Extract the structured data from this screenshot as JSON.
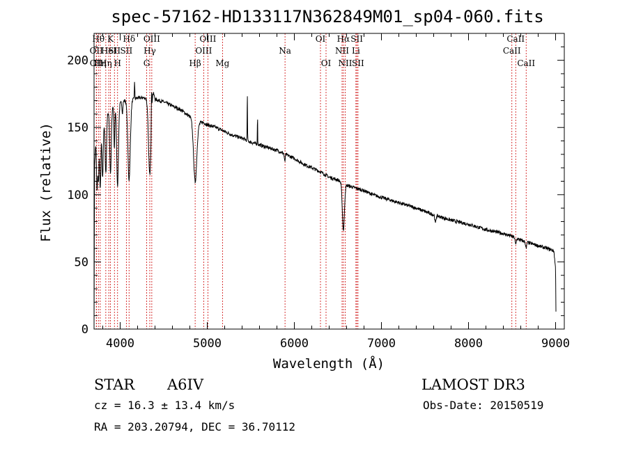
{
  "chart_data": {
    "type": "line",
    "title": "spec-57162-HD133117N362849M01_sp04-060.fits",
    "xlabel": "Wavelength (Å)",
    "ylabel": "Flux (relative)",
    "xlim": [
      3700,
      9100
    ],
    "ylim": [
      0,
      220
    ],
    "xticks": [
      4000,
      5000,
      6000,
      7000,
      8000,
      9000
    ],
    "yticks": [
      0,
      50,
      100,
      150,
      200
    ],
    "continuum": [
      [
        3700,
        0
      ],
      [
        3705,
        120
      ],
      [
        3720,
        140
      ],
      [
        3760,
        148
      ],
      [
        3800,
        152
      ],
      [
        3850,
        160
      ],
      [
        3900,
        165
      ],
      [
        3950,
        166
      ],
      [
        4000,
        168
      ],
      [
        4050,
        170
      ],
      [
        4100,
        171
      ],
      [
        4150,
        171
      ],
      [
        4200,
        172
      ],
      [
        4250,
        172
      ],
      [
        4300,
        172
      ],
      [
        4340,
        173
      ],
      [
        4370,
        180
      ],
      [
        4400,
        171
      ],
      [
        4500,
        169
      ],
      [
        4600,
        166
      ],
      [
        4700,
        163
      ],
      [
        4800,
        158
      ],
      [
        4850,
        155
      ],
      [
        4900,
        153
      ],
      [
        4950,
        154
      ],
      [
        5000,
        152
      ],
      [
        5100,
        150
      ],
      [
        5200,
        147
      ],
      [
        5300,
        144
      ],
      [
        5400,
        142
      ],
      [
        5500,
        139
      ],
      [
        5600,
        137
      ],
      [
        5700,
        135
      ],
      [
        5800,
        133
      ],
      [
        5900,
        130
      ],
      [
        6000,
        127
      ],
      [
        6100,
        123
      ],
      [
        6200,
        120
      ],
      [
        6300,
        117
      ],
      [
        6400,
        113
      ],
      [
        6500,
        111
      ],
      [
        6550,
        109
      ],
      [
        6600,
        107
      ],
      [
        6700,
        105
      ],
      [
        6800,
        103
      ],
      [
        6900,
        100
      ],
      [
        7000,
        98
      ],
      [
        7200,
        94
      ],
      [
        7400,
        90
      ],
      [
        7600,
        85
      ],
      [
        7800,
        81
      ],
      [
        8000,
        78
      ],
      [
        8200,
        74
      ],
      [
        8400,
        71
      ],
      [
        8500,
        69
      ],
      [
        8600,
        66
      ],
      [
        8700,
        64
      ],
      [
        8800,
        62
      ],
      [
        8900,
        60
      ],
      [
        8950,
        59
      ],
      [
        8980,
        58
      ],
      [
        9000,
        45
      ],
      [
        9005,
        5
      ]
    ],
    "features": [
      {
        "center": 3734,
        "depth": 40,
        "width": 6
      },
      {
        "center": 3750,
        "depth": 35,
        "width": 6
      },
      {
        "center": 3771,
        "depth": 45,
        "width": 7
      },
      {
        "center": 3798,
        "depth": 40,
        "width": 7
      },
      {
        "center": 3835,
        "depth": 42,
        "width": 8
      },
      {
        "center": 3889,
        "depth": 48,
        "width": 9
      },
      {
        "center": 3933,
        "depth": 32,
        "width": 5
      },
      {
        "center": 3970,
        "depth": 60,
        "width": 10
      },
      {
        "center": 4026,
        "depth": 8,
        "width": 5
      },
      {
        "center": 4102,
        "depth": 60,
        "width": 14
      },
      {
        "center": 4340,
        "depth": 58,
        "width": 15
      },
      {
        "center": 4861,
        "depth": 45,
        "width": 18
      },
      {
        "center": 5890,
        "depth": 6,
        "width": 5
      },
      {
        "center": 6563,
        "depth": 35,
        "width": 12
      },
      {
        "center": 7620,
        "depth": 6,
        "width": 6
      },
      {
        "center": 8542,
        "depth": 5,
        "width": 6
      },
      {
        "center": 8662,
        "depth": 5,
        "width": 6
      }
    ],
    "emission_spikes": [
      {
        "center": 4165,
        "height": 12,
        "width": 3
      },
      {
        "center": 4360,
        "height": 22,
        "width": 3
      },
      {
        "center": 5460,
        "height": 38,
        "width": 2
      },
      {
        "center": 5577,
        "height": 22,
        "width": 2
      }
    ],
    "line_markers": [
      {
        "x": 3726,
        "label": "OII",
        "row": 1
      },
      {
        "x": 3727,
        "label": "OII",
        "row": 2
      },
      {
        "x": 3750,
        "label": "Hθ",
        "row": 0
      },
      {
        "x": 3771,
        "label": "Hη",
        "row": 2
      },
      {
        "x": 3835,
        "label": "Hη",
        "row": 2
      },
      {
        "x": 3869,
        "label": "HeI",
        "row": 1
      },
      {
        "x": 3889,
        "label": "K",
        "row": 0
      },
      {
        "x": 3934,
        "label": "SII",
        "row": 1
      },
      {
        "x": 3970,
        "label": "H",
        "row": 2
      },
      {
        "x": 4071,
        "label": "SII",
        "row": 1
      },
      {
        "x": 4102,
        "label": "Hδ",
        "row": 0
      },
      {
        "x": 4304,
        "label": "G",
        "row": 2
      },
      {
        "x": 4340,
        "label": "Hγ",
        "row": 1
      },
      {
        "x": 4363,
        "label": "OIII",
        "row": 0
      },
      {
        "x": 4861,
        "label": "Hβ",
        "row": 2
      },
      {
        "x": 4959,
        "label": "OIII",
        "row": 1
      },
      {
        "x": 5007,
        "label": "OIII",
        "row": 0
      },
      {
        "x": 5175,
        "label": "Mg",
        "row": 2
      },
      {
        "x": 5893,
        "label": "Na",
        "row": 1
      },
      {
        "x": 6300,
        "label": "OI",
        "row": 0
      },
      {
        "x": 6364,
        "label": "OI",
        "row": 2
      },
      {
        "x": 6548,
        "label": "NII",
        "row": 1
      },
      {
        "x": 6563,
        "label": "Hα",
        "row": 0
      },
      {
        "x": 6584,
        "label": "NII",
        "row": 2
      },
      {
        "x": 6707,
        "label": "Li",
        "row": 1
      },
      {
        "x": 6717,
        "label": "SII",
        "row": 0
      },
      {
        "x": 6731,
        "label": "SII",
        "row": 2
      },
      {
        "x": 8498,
        "label": "CaII",
        "row": 1
      },
      {
        "x": 8542,
        "label": "CaII",
        "row": 0
      },
      {
        "x": 8662,
        "label": "CaII",
        "row": 2
      }
    ]
  },
  "info": {
    "object_class": "STAR",
    "subclass": "A6IV",
    "survey": "LAMOST DR3",
    "redshift": "cz = 16.3 ± 13.4 km/s",
    "obs_date": "Obs-Date: 20150519",
    "coords": "RA = 203.20794, DEC =  36.70112"
  }
}
